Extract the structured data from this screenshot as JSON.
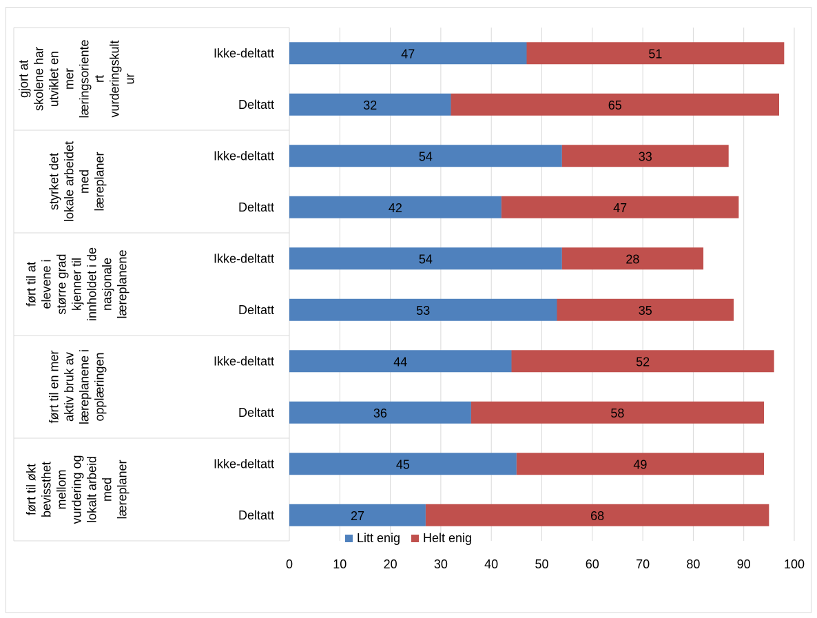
{
  "chart_data": {
    "type": "bar",
    "orientation": "horizontal",
    "stacked": true,
    "title": "",
    "xlabel": "",
    "ylabel": "",
    "xlim": [
      0,
      100
    ],
    "x_ticks": [
      0,
      10,
      20,
      30,
      40,
      50,
      60,
      70,
      80,
      90,
      100
    ],
    "grid": true,
    "legend_position": "bottom",
    "groups": [
      {
        "label": "gjort at skolene har utviklet en mer læringsorientert vurderingskultur",
        "label_lines": [
          "gjort at",
          "skolene har",
          "utviklet en",
          "mer",
          "læringsoriente",
          "rt",
          "vurderingskult",
          "ur"
        ],
        "categories": [
          "Ikke-deltatt",
          "Deltatt"
        ],
        "series_values": {
          "Litt enig": [
            47,
            32
          ],
          "Helt enig": [
            51,
            65
          ]
        }
      },
      {
        "label": "styrket det lokale arbeidet med læreplaner",
        "label_lines": [
          "styrket det",
          "lokale arbeidet",
          "med",
          "læreplaner"
        ],
        "categories": [
          "Ikke-deltatt",
          "Deltatt"
        ],
        "series_values": {
          "Litt enig": [
            54,
            42
          ],
          "Helt enig": [
            33,
            47
          ]
        }
      },
      {
        "label": "ført til at elevene i større grad kjenner til innholdet i de nasjonale læreplanene",
        "label_lines": [
          "ført til at",
          "elevene i",
          "større grad",
          "kjenner til",
          "innholdet i de",
          "nasjonale",
          "læreplanene"
        ],
        "categories": [
          "Ikke-deltatt",
          "Deltatt"
        ],
        "series_values": {
          "Litt enig": [
            54,
            53
          ],
          "Helt enig": [
            28,
            35
          ]
        }
      },
      {
        "label": "ført til en mer aktiv bruk av læreplanene i opplæringen",
        "label_lines": [
          "ført til en mer",
          "aktiv bruk av",
          "læreplanene i",
          "opplæringen"
        ],
        "categories": [
          "Ikke-deltatt",
          "Deltatt"
        ],
        "series_values": {
          "Litt enig": [
            44,
            36
          ],
          "Helt enig": [
            52,
            58
          ]
        }
      },
      {
        "label": "ført til økt bevissthet mellom vurdering og lokalt arbeid med læreplaner",
        "label_lines": [
          "ført til økt",
          "bevissthet",
          "mellom",
          "vurdering og",
          "lokalt arbeid",
          "med",
          "læreplaner"
        ],
        "categories": [
          "Ikke-deltatt",
          "Deltatt"
        ],
        "series_values": {
          "Litt enig": [
            45,
            27
          ],
          "Helt enig": [
            49,
            68
          ]
        }
      }
    ],
    "series": [
      {
        "name": "Litt enig",
        "color": "#4f81bd"
      },
      {
        "name": "Helt enig",
        "color": "#c0504d"
      }
    ]
  }
}
